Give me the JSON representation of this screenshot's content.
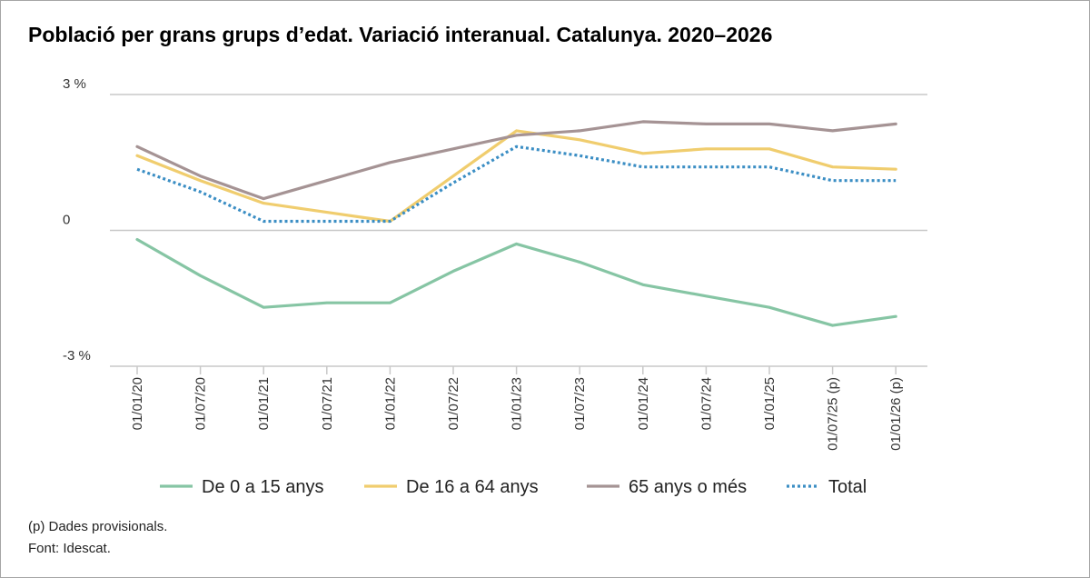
{
  "title": "Població per grans grups d’edat. Variació interanual. Catalunya. 2020–2026",
  "notes": {
    "provisional": "(p) Dades provisionals.",
    "source": "Font: Idescat."
  },
  "chart_data": {
    "type": "line",
    "title": "Població per grans grups d’edat. Variació interanual. Catalunya. 2020–2026",
    "xlabel": "",
    "ylabel": "",
    "ylim": [
      -3,
      3
    ],
    "y_ticks": [
      {
        "value": 3,
        "label": "3 %"
      },
      {
        "value": 0,
        "label": "0"
      },
      {
        "value": -3,
        "label": "-3 %"
      }
    ],
    "grid": true,
    "legend_position": "bottom",
    "categories": [
      "01/01/20",
      "01/07/20",
      "01/01/21",
      "01/07/21",
      "01/01/22",
      "01/07/22",
      "01/01/23",
      "01/07/23",
      "01/01/24",
      "01/07/24",
      "01/01/25",
      "01/07/25 (p)",
      "01/01/26 (p)"
    ],
    "series": [
      {
        "name": "De 0 a 15 anys",
        "color": "#86c5a4",
        "style": "solid",
        "values": [
          -0.2,
          -1.0,
          -1.7,
          -1.6,
          -1.6,
          -0.9,
          -0.3,
          -0.7,
          -1.2,
          -1.45,
          -1.7,
          -2.1,
          -1.9
        ]
      },
      {
        "name": "De 16 a 64 anys",
        "color": "#f0cd6e",
        "style": "solid",
        "values": [
          1.65,
          1.1,
          0.6,
          0.4,
          0.2,
          1.2,
          2.2,
          2.0,
          1.7,
          1.8,
          1.8,
          1.4,
          1.35
        ]
      },
      {
        "name": "65 anys o més",
        "color": "#a59394",
        "style": "solid",
        "values": [
          1.85,
          1.2,
          0.7,
          1.1,
          1.5,
          1.8,
          2.1,
          2.2,
          2.4,
          2.35,
          2.35,
          2.2,
          2.35
        ]
      },
      {
        "name": "Total",
        "color": "#3b8ec4",
        "style": "dotted",
        "values": [
          1.35,
          0.85,
          0.2,
          0.2,
          0.2,
          1.05,
          1.85,
          1.65,
          1.4,
          1.4,
          1.4,
          1.1,
          1.1
        ]
      }
    ]
  }
}
